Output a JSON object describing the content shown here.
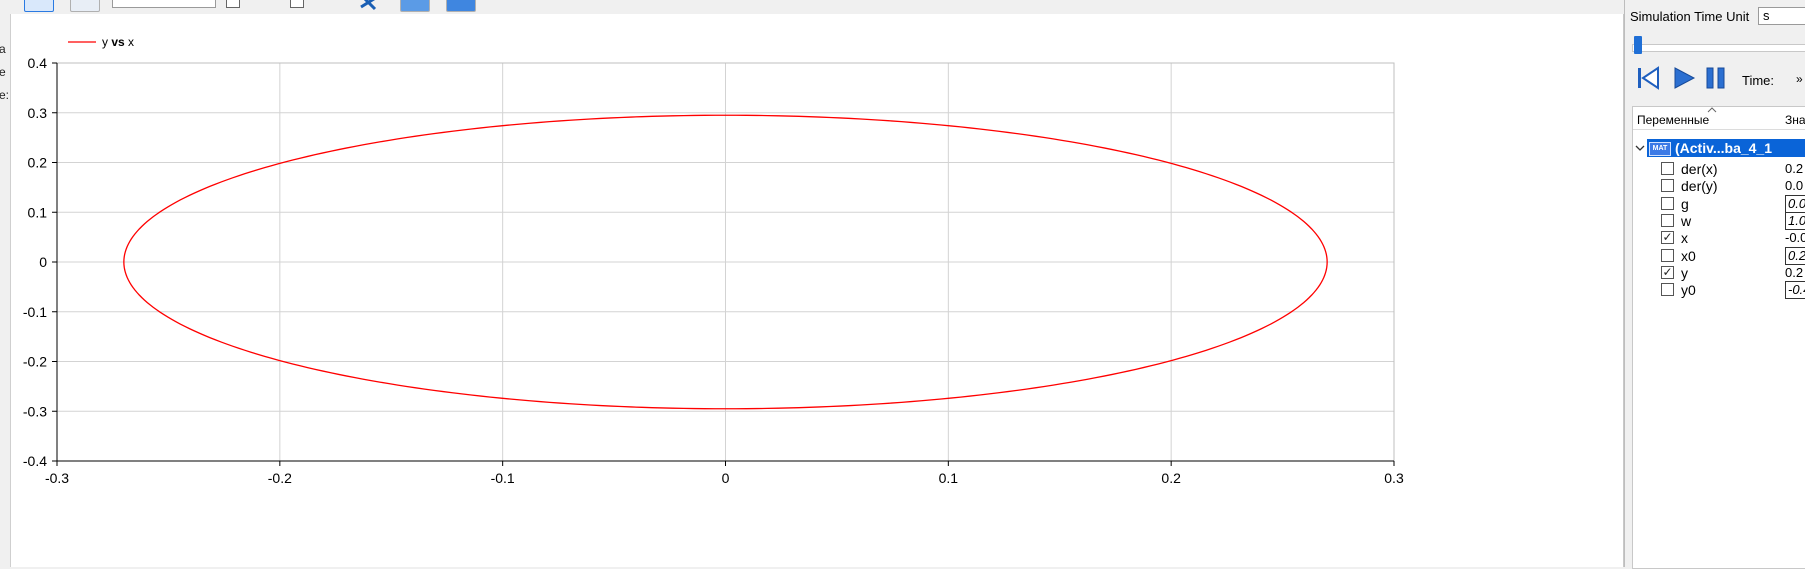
{
  "chart_data": {
    "type": "line",
    "legend": {
      "entries": [
        "y vs x"
      ],
      "placement": "top-left",
      "color": "#ff0000"
    },
    "legend_label_parts": {
      "pre": "y ",
      "bold": "vs",
      "post": " x"
    },
    "xlim": [
      -0.3,
      0.3
    ],
    "ylim": [
      -0.4,
      0.4
    ],
    "xticks": [
      -0.3,
      -0.2,
      -0.1,
      0,
      0.1,
      0.2,
      0.3
    ],
    "yticks": [
      -0.4,
      -0.3,
      -0.2,
      -0.1,
      0,
      0.1,
      0.2,
      0.3,
      0.4
    ],
    "xtick_labels": [
      "-0.3",
      "-0.2",
      "-0.1",
      "0",
      "0.1",
      "0.2",
      "0.3"
    ],
    "ytick_labels": [
      "-0.4",
      "-0.3",
      "-0.2",
      "-0.1",
      "0",
      "0.1",
      "0.2",
      "0.3",
      "0.4"
    ],
    "grid": true,
    "series": [
      {
        "name": "y vs x",
        "color": "#ff0000",
        "shape": "ellipse",
        "x_amplitude": 0.27,
        "y_amplitude": 0.295
      }
    ]
  },
  "left_edge_fragments": [
    "a",
    "e",
    "e:"
  ],
  "right_panel": {
    "time_unit_label": "Simulation Time Unit",
    "time_unit_value": "s",
    "time_label": "Time:",
    "overflow_label": "»",
    "slider_fraction": 0.0,
    "columns": {
      "variables": "Переменные",
      "value": "Зна"
    },
    "root": {
      "badge": "MAT",
      "label": "(Activ...ba_4_1"
    },
    "variables": [
      {
        "name": "der(x)",
        "checked": false,
        "value": "0.2",
        "editable": false
      },
      {
        "name": "der(y)",
        "checked": false,
        "value": "0.0",
        "editable": false
      },
      {
        "name": "g",
        "checked": false,
        "value": "0.0",
        "editable": true
      },
      {
        "name": "w",
        "checked": false,
        "value": "1.0",
        "editable": true
      },
      {
        "name": "x",
        "checked": true,
        "value": "-0.0",
        "editable": false
      },
      {
        "name": "x0",
        "checked": false,
        "value": "0.2",
        "editable": true
      },
      {
        "name": "y",
        "checked": true,
        "value": "0.2",
        "editable": false
      },
      {
        "name": "y0",
        "checked": false,
        "value": "-0.4",
        "editable": true
      }
    ]
  },
  "colors": {
    "accent": "#0a64d8",
    "series": "#ff0000",
    "grid": "#d3d3d3"
  },
  "icons": [
    "fit-in-view-icon",
    "reset-zoom-icon",
    "tools-icon",
    "copy-icon",
    "print-icon",
    "skip-to-start-icon",
    "play-icon",
    "pause-icon",
    "expand-chevron-icon"
  ]
}
